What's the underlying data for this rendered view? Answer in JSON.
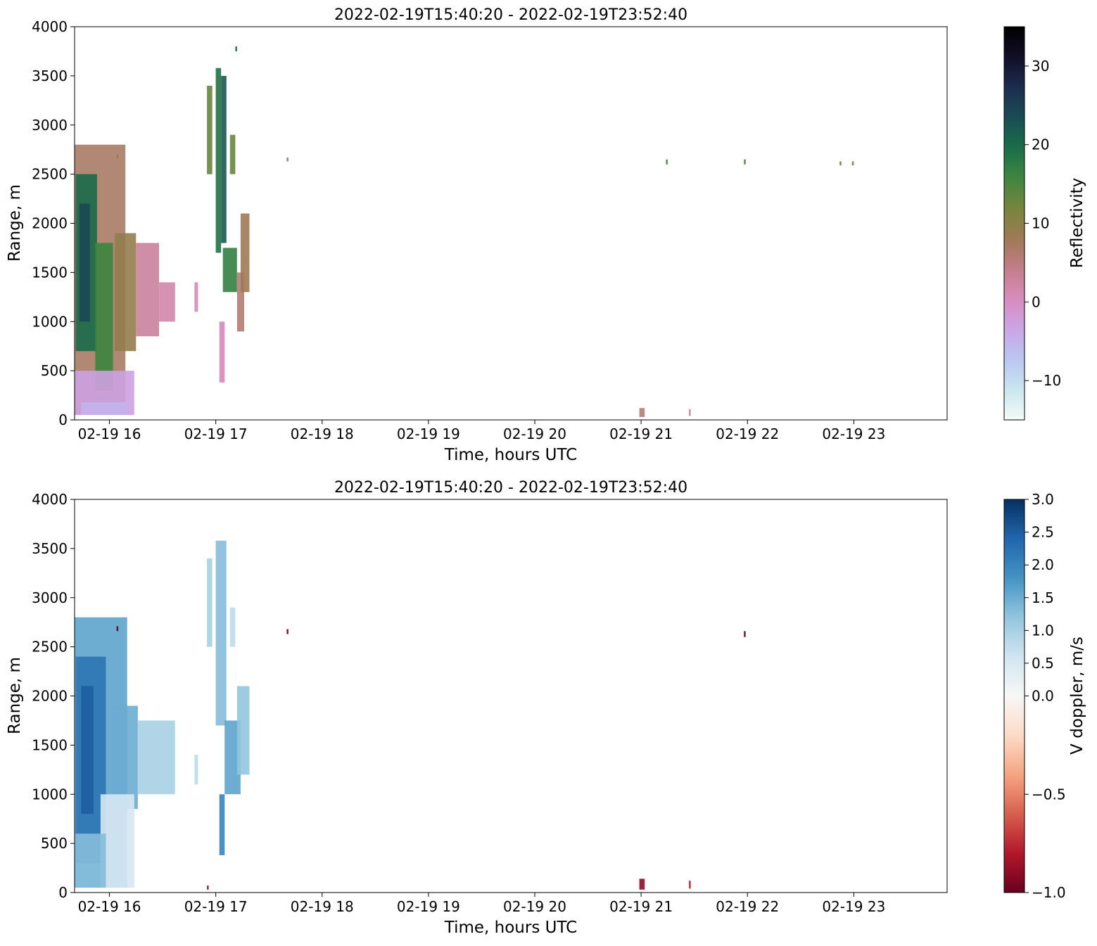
{
  "chart_data": [
    {
      "type": "heatmap",
      "title": "2022-02-19T15:40:20 - 2022-02-19T23:52:40",
      "xlabel": "Time, hours UTC",
      "ylabel": "Range, m",
      "x_range": [
        "2022-02-19T15:40:20",
        "2022-02-19T23:52:40"
      ],
      "ylim": [
        0,
        4000
      ],
      "x_ticks": [
        {
          "time": "2022-02-19T16:00:00",
          "label": "02-19 16"
        },
        {
          "time": "2022-02-19T17:00:00",
          "label": "02-19 17"
        },
        {
          "time": "2022-02-19T18:00:00",
          "label": "02-19 18"
        },
        {
          "time": "2022-02-19T19:00:00",
          "label": "02-19 19"
        },
        {
          "time": "2022-02-19T20:00:00",
          "label": "02-19 20"
        },
        {
          "time": "2022-02-19T21:00:00",
          "label": "02-19 21"
        },
        {
          "time": "2022-02-19T22:00:00",
          "label": "02-19 22"
        },
        {
          "time": "2022-02-19T23:00:00",
          "label": "02-19 23"
        }
      ],
      "y_ticks": [
        0,
        500,
        1000,
        1500,
        2000,
        2500,
        3000,
        3500,
        4000
      ],
      "colorbar": {
        "label": "Reflectivity",
        "colormap": "cubehelix_r",
        "range": [
          -15,
          35
        ],
        "ticks": [
          -10,
          0,
          10,
          20,
          30
        ],
        "tick_labels": [
          "−10",
          "0",
          "10",
          "20",
          "30"
        ],
        "stops": [
          "#f3fbf7",
          "#c9e6ef",
          "#b9c6f3",
          "#cba4e6",
          "#d88dbe",
          "#c47d8a",
          "#9e7a55",
          "#77853c",
          "#3f8640",
          "#1a6d48",
          "#1a4b55",
          "#1d2c4e",
          "#120e27",
          "#000000"
        ]
      },
      "regions": [
        {
          "t0": "2022-02-19T15:40:20",
          "t1": "2022-02-19T16:09:00",
          "r0": 50,
          "r1": 2800,
          "value": 7
        },
        {
          "t0": "2022-02-19T15:41:00",
          "t1": "2022-02-19T15:53:00",
          "r0": 700,
          "r1": 2500,
          "value": 20
        },
        {
          "t0": "2022-02-19T15:43:00",
          "t1": "2022-02-19T15:49:00",
          "r0": 1000,
          "r1": 2200,
          "value": 24
        },
        {
          "t0": "2022-02-19T15:52:00",
          "t1": "2022-02-19T16:02:00",
          "r0": 300,
          "r1": 1800,
          "value": 16
        },
        {
          "t0": "2022-02-19T16:03:00",
          "t1": "2022-02-19T16:15:00",
          "r0": 700,
          "r1": 1900,
          "value": 9
        },
        {
          "t0": "2022-02-19T16:15:00",
          "t1": "2022-02-19T16:28:00",
          "r0": 850,
          "r1": 1800,
          "value": 3
        },
        {
          "t0": "2022-02-19T16:28:00",
          "t1": "2022-02-19T16:37:00",
          "r0": 1000,
          "r1": 1400,
          "value": 2
        },
        {
          "t0": "2022-02-19T15:40:20",
          "t1": "2022-02-19T16:14:00",
          "r0": 50,
          "r1": 500,
          "value": -3
        },
        {
          "t0": "2022-02-19T15:44:00",
          "t1": "2022-02-19T16:10:00",
          "r0": 50,
          "r1": 180,
          "value": -5
        },
        {
          "t0": "2022-02-19T16:48:00",
          "t1": "2022-02-19T16:50:00",
          "r0": 1100,
          "r1": 1400,
          "value": 1
        },
        {
          "t0": "2022-02-19T16:55:00",
          "t1": "2022-02-19T16:58:00",
          "r0": 2500,
          "r1": 3400,
          "value": 13
        },
        {
          "t0": "2022-02-19T17:00:00",
          "t1": "2022-02-19T17:03:00",
          "r0": 1700,
          "r1": 3580,
          "value": 19
        },
        {
          "t0": "2022-02-19T17:03:00",
          "t1": "2022-02-19T17:06:00",
          "r0": 1800,
          "r1": 3500,
          "value": 22
        },
        {
          "t0": "2022-02-19T17:04:00",
          "t1": "2022-02-19T17:12:00",
          "r0": 1300,
          "r1": 1750,
          "value": 17
        },
        {
          "t0": "2022-02-19T17:08:00",
          "t1": "2022-02-19T17:11:00",
          "r0": 2500,
          "r1": 2900,
          "value": 13
        },
        {
          "t0": "2022-02-19T17:12:00",
          "t1": "2022-02-19T17:16:00",
          "r0": 900,
          "r1": 1500,
          "value": 6
        },
        {
          "t0": "2022-02-19T17:14:00",
          "t1": "2022-02-19T17:19:00",
          "r0": 1300,
          "r1": 2100,
          "value": 8
        },
        {
          "t0": "2022-02-19T17:02:00",
          "t1": "2022-02-19T17:05:00",
          "r0": 380,
          "r1": 1000,
          "value": 1
        },
        {
          "t0": "2022-02-19T17:11:00",
          "t1": "2022-02-19T17:12:00",
          "r0": 3750,
          "r1": 3800,
          "value": 20
        },
        {
          "t0": "2022-02-19T16:04:00",
          "t1": "2022-02-19T16:05:00",
          "r0": 2660,
          "r1": 2700,
          "value": 10
        },
        {
          "t0": "2022-02-19T17:40:00",
          "t1": "2022-02-19T17:41:00",
          "r0": 2630,
          "r1": 2670,
          "value": 10
        },
        {
          "t0": "2022-02-19T21:14:00",
          "t1": "2022-02-19T21:15:00",
          "r0": 2600,
          "r1": 2650,
          "value": 16
        },
        {
          "t0": "2022-02-19T21:58:00",
          "t1": "2022-02-19T21:59:00",
          "r0": 2600,
          "r1": 2650,
          "value": 16
        },
        {
          "t0": "2022-02-19T22:52:00",
          "t1": "2022-02-19T22:53:00",
          "r0": 2590,
          "r1": 2630,
          "value": 14
        },
        {
          "t0": "2022-02-19T22:59:00",
          "t1": "2022-02-19T23:00:00",
          "r0": 2590,
          "r1": 2630,
          "value": 14
        },
        {
          "t0": "2022-02-19T20:59:00",
          "t1": "2022-02-19T21:02:00",
          "r0": 30,
          "r1": 120,
          "value": 6
        },
        {
          "t0": "2022-02-19T21:27:00",
          "t1": "2022-02-19T21:28:00",
          "r0": 40,
          "r1": 110,
          "value": 3
        }
      ]
    },
    {
      "type": "heatmap",
      "title": "2022-02-19T15:40:20 - 2022-02-19T23:52:40",
      "xlabel": "Time, hours UTC",
      "ylabel": "Range, m",
      "x_range": [
        "2022-02-19T15:40:20",
        "2022-02-19T23:52:40"
      ],
      "ylim": [
        0,
        4000
      ],
      "x_ticks": [
        {
          "time": "2022-02-19T16:00:00",
          "label": "02-19 16"
        },
        {
          "time": "2022-02-19T17:00:00",
          "label": "02-19 17"
        },
        {
          "time": "2022-02-19T18:00:00",
          "label": "02-19 18"
        },
        {
          "time": "2022-02-19T19:00:00",
          "label": "02-19 19"
        },
        {
          "time": "2022-02-19T20:00:00",
          "label": "02-19 20"
        },
        {
          "time": "2022-02-19T21:00:00",
          "label": "02-19 21"
        },
        {
          "time": "2022-02-19T22:00:00",
          "label": "02-19 22"
        },
        {
          "time": "2022-02-19T23:00:00",
          "label": "02-19 23"
        }
      ],
      "y_ticks": [
        0,
        500,
        1000,
        1500,
        2000,
        2500,
        3000,
        3500,
        4000
      ],
      "colorbar": {
        "label": "V doppler, m/s",
        "colormap": "RdBu (two-slope, centered at 0)",
        "range": [
          -1,
          3
        ],
        "center": 0,
        "ticks": [
          -1.0,
          -0.5,
          0.0,
          0.5,
          1.0,
          1.5,
          2.0,
          2.5,
          3.0
        ],
        "tick_labels": [
          "−1.0",
          "−0.5",
          "0.0",
          "0.5",
          "1.0",
          "1.5",
          "2.0",
          "2.5",
          "3.0"
        ],
        "stops_negative": [
          "#67001f",
          "#b2182b",
          "#d6604d",
          "#f4a582",
          "#fddbc7",
          "#f7f7f7"
        ],
        "stops_positive": [
          "#f7f7f7",
          "#d1e5f0",
          "#92c5de",
          "#4393c3",
          "#2166ac",
          "#053061"
        ]
      },
      "regions": [
        {
          "t0": "2022-02-19T15:40:20",
          "t1": "2022-02-19T16:10:00",
          "r0": 50,
          "r1": 2800,
          "value": 1.6
        },
        {
          "t0": "2022-02-19T15:41:00",
          "t1": "2022-02-19T15:58:00",
          "r0": 300,
          "r1": 2400,
          "value": 2.2
        },
        {
          "t0": "2022-02-19T15:44:00",
          "t1": "2022-02-19T15:51:00",
          "r0": 800,
          "r1": 2100,
          "value": 2.5
        },
        {
          "t0": "2022-02-19T16:02:00",
          "t1": "2022-02-19T16:16:00",
          "r0": 850,
          "r1": 1900,
          "value": 1.5
        },
        {
          "t0": "2022-02-19T16:16:00",
          "t1": "2022-02-19T16:37:00",
          "r0": 1000,
          "r1": 1750,
          "value": 1.0
        },
        {
          "t0": "2022-02-19T15:55:00",
          "t1": "2022-02-19T16:14:00",
          "r0": 50,
          "r1": 1000,
          "value": 0.5
        },
        {
          "t0": "2022-02-19T15:40:20",
          "t1": "2022-02-19T15:58:00",
          "r0": 50,
          "r1": 600,
          "value": 1.3
        },
        {
          "t0": "2022-02-19T16:48:00",
          "t1": "2022-02-19T16:50:00",
          "r0": 1100,
          "r1": 1400,
          "value": 0.8
        },
        {
          "t0": "2022-02-19T16:55:00",
          "t1": "2022-02-19T16:58:00",
          "r0": 2500,
          "r1": 3400,
          "value": 1.0
        },
        {
          "t0": "2022-02-19T17:00:00",
          "t1": "2022-02-19T17:06:00",
          "r0": 1700,
          "r1": 3580,
          "value": 1.3
        },
        {
          "t0": "2022-02-19T17:05:00",
          "t1": "2022-02-19T17:14:00",
          "r0": 1000,
          "r1": 1750,
          "value": 1.6
        },
        {
          "t0": "2022-02-19T17:12:00",
          "t1": "2022-02-19T17:19:00",
          "r0": 1200,
          "r1": 2100,
          "value": 1.2
        },
        {
          "t0": "2022-02-19T17:02:00",
          "t1": "2022-02-19T17:05:00",
          "r0": 380,
          "r1": 1000,
          "value": 2.0
        },
        {
          "t0": "2022-02-19T17:08:00",
          "t1": "2022-02-19T17:11:00",
          "r0": 2500,
          "r1": 2900,
          "value": 0.8
        },
        {
          "t0": "2022-02-19T16:04:00",
          "t1": "2022-02-19T16:05:00",
          "r0": 2660,
          "r1": 2710,
          "value": -1.0
        },
        {
          "t0": "2022-02-19T17:40:00",
          "t1": "2022-02-19T17:41:00",
          "r0": 2630,
          "r1": 2680,
          "value": -1.0
        },
        {
          "t0": "2022-02-19T21:58:00",
          "t1": "2022-02-19T21:59:00",
          "r0": 2600,
          "r1": 2660,
          "value": -1.0
        },
        {
          "t0": "2022-02-19T20:59:00",
          "t1": "2022-02-19T21:02:00",
          "r0": 30,
          "r1": 140,
          "value": -0.9
        },
        {
          "t0": "2022-02-19T21:27:00",
          "t1": "2022-02-19T21:28:00",
          "r0": 40,
          "r1": 120,
          "value": -0.8
        },
        {
          "t0": "2022-02-19T16:55:00",
          "t1": "2022-02-19T16:56:00",
          "r0": 30,
          "r1": 70,
          "value": -0.9
        }
      ]
    }
  ]
}
